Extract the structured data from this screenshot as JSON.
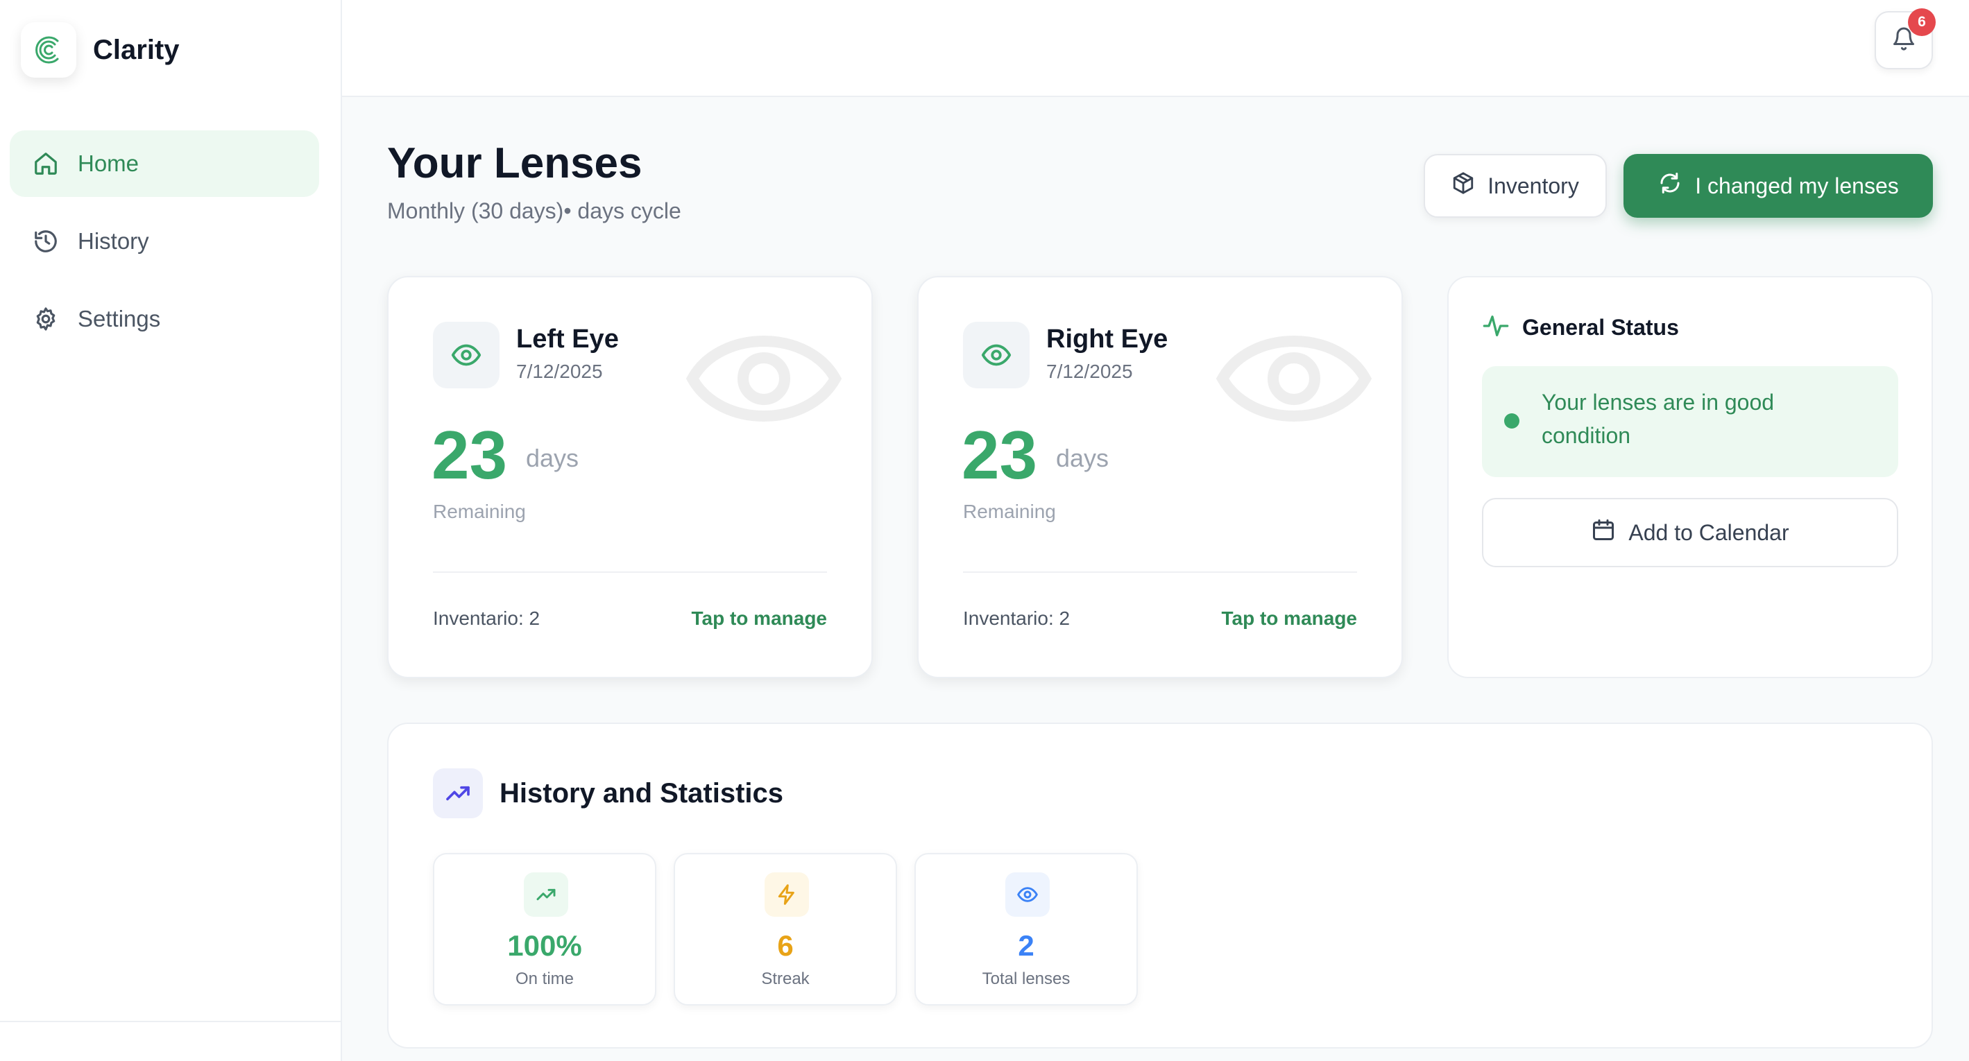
{
  "brand": {
    "name": "Clarity",
    "logo_icon": "clarity-logo-icon"
  },
  "nav": {
    "items": [
      {
        "label": "Home",
        "icon": "home-icon",
        "active": true
      },
      {
        "label": "History",
        "icon": "history-icon",
        "active": false
      },
      {
        "label": "Settings",
        "icon": "gear-icon",
        "active": false
      }
    ]
  },
  "topbar": {
    "notification_count": "6"
  },
  "header": {
    "title": "Your Lenses",
    "subtitle": "Monthly (30 days)• days cycle",
    "inventory_label": "Inventory",
    "changed_label": "I changed my lenses"
  },
  "eyes": [
    {
      "name": "Left Eye",
      "date": "7/12/2025",
      "days": "23",
      "days_unit": "days",
      "remaining_label": "Remaining",
      "inventory": "Inventario: 2",
      "manage_label": "Tap to manage"
    },
    {
      "name": "Right Eye",
      "date": "7/12/2025",
      "days": "23",
      "days_unit": "days",
      "remaining_label": "Remaining",
      "inventory": "Inventario: 2",
      "manage_label": "Tap to manage"
    }
  ],
  "status": {
    "title": "General Status",
    "message": "Your lenses are in good condition",
    "calendar_label": "Add to Calendar"
  },
  "history": {
    "title": "History and Statistics",
    "stats": [
      {
        "value": "100%",
        "label": "On time",
        "icon": "trending-up-icon",
        "color": "#3aa86b"
      },
      {
        "value": "6",
        "label": "Streak",
        "icon": "lightning-icon",
        "color": "#e8a317"
      },
      {
        "value": "2",
        "label": "Total lenses",
        "icon": "eye-icon",
        "color": "#3b82f6"
      }
    ]
  },
  "colors": {
    "accent": "#2f8a57",
    "accent_light": "#3aa86b",
    "badge": "#e5484d"
  }
}
